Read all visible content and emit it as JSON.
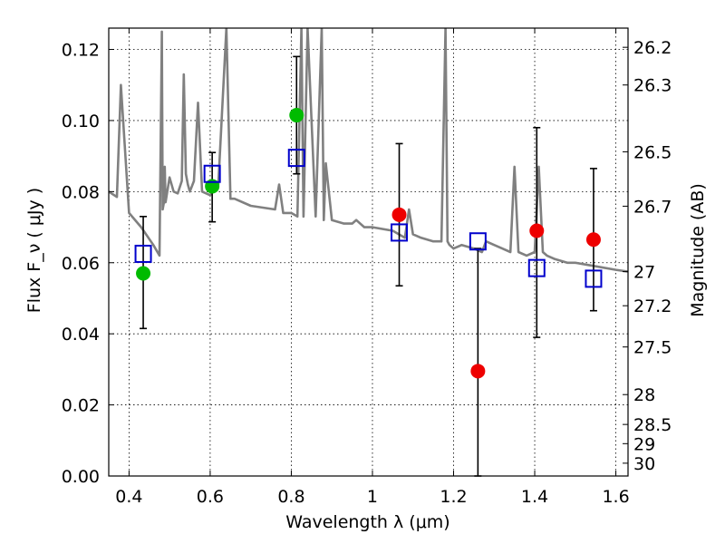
{
  "chart_data": {
    "type": "scatter",
    "title": "",
    "xlabel": "Wavelength  λ (μm)",
    "ylabel": "Flux  F_ν  ( μJy )",
    "ylabel_right": "Magnitude (AB)",
    "xlim": [
      0.35,
      1.63
    ],
    "ylim": [
      0.0,
      0.126
    ],
    "grid": true,
    "x_ticks": [
      0.4,
      0.6,
      0.8,
      1.0,
      1.2,
      1.4,
      1.6
    ],
    "x_tick_labels": [
      "0.4",
      "0.6",
      "0.8",
      "1",
      "1.2",
      "1.4",
      "1.6"
    ],
    "y_ticks": [
      0.0,
      0.02,
      0.04,
      0.06,
      0.08,
      0.1,
      0.12
    ],
    "y_tick_labels": [
      "0.00",
      "0.02",
      "0.04",
      "0.06",
      "0.08",
      "0.10",
      "0.12"
    ],
    "right_ticks": [
      {
        "label": "26.2",
        "flux": 0.1206
      },
      {
        "label": "26.3",
        "flux": 0.11
      },
      {
        "label": "26.5",
        "flux": 0.0912
      },
      {
        "label": "26.7",
        "flux": 0.0759
      },
      {
        "label": "27",
        "flux": 0.0575
      },
      {
        "label": "27.2",
        "flux": 0.0479
      },
      {
        "label": "27.5",
        "flux": 0.0363
      },
      {
        "label": "28",
        "flux": 0.0229
      },
      {
        "label": "28.5",
        "flux": 0.0145
      },
      {
        "label": "29",
        "flux": 0.0091
      },
      {
        "label": "30",
        "flux": 0.0036
      }
    ],
    "series": [
      {
        "name": "model SED",
        "kind": "line",
        "color": "#808080",
        "x": [
          0.35,
          0.37,
          0.38,
          0.4,
          0.43,
          0.46,
          0.475,
          0.481,
          0.483,
          0.486,
          0.488,
          0.49,
          0.5,
          0.51,
          0.52,
          0.53,
          0.535,
          0.54,
          0.545,
          0.55,
          0.56,
          0.57,
          0.58,
          0.6,
          0.62,
          0.64,
          0.65,
          0.66,
          0.7,
          0.76,
          0.77,
          0.78,
          0.8,
          0.815,
          0.825,
          0.83,
          0.84,
          0.86,
          0.875,
          0.88,
          0.885,
          0.9,
          0.93,
          0.95,
          0.96,
          0.98,
          1.0,
          1.05,
          1.08,
          1.09,
          1.1,
          1.12,
          1.15,
          1.17,
          1.18,
          1.185,
          1.19,
          1.2,
          1.22,
          1.25,
          1.27,
          1.28,
          1.3,
          1.32,
          1.34,
          1.35,
          1.36,
          1.38,
          1.4,
          1.41,
          1.42,
          1.43,
          1.45,
          1.48,
          1.5,
          1.55,
          1.6,
          1.63
        ],
        "y": [
          0.08,
          0.0785,
          0.11,
          0.074,
          0.07,
          0.065,
          0.062,
          0.125,
          0.075,
          0.077,
          0.087,
          0.077,
          0.084,
          0.08,
          0.0795,
          0.083,
          0.113,
          0.085,
          0.082,
          0.08,
          0.083,
          0.105,
          0.08,
          0.079,
          0.082,
          0.126,
          0.078,
          0.078,
          0.076,
          0.075,
          0.082,
          0.074,
          0.074,
          0.073,
          0.126,
          0.073,
          0.126,
          0.073,
          0.126,
          0.072,
          0.088,
          0.072,
          0.071,
          0.071,
          0.072,
          0.07,
          0.07,
          0.069,
          0.067,
          0.075,
          0.068,
          0.067,
          0.066,
          0.066,
          0.126,
          0.066,
          0.065,
          0.064,
          0.065,
          0.064,
          0.063,
          0.066,
          0.065,
          0.064,
          0.063,
          0.087,
          0.063,
          0.062,
          0.063,
          0.087,
          0.063,
          0.062,
          0.061,
          0.06,
          0.06,
          0.059,
          0.058,
          0.0575
        ]
      },
      {
        "name": "observed (green)",
        "kind": "marker-circle",
        "color": "#00bb00",
        "x": [
          0.435,
          0.605,
          0.813
        ],
        "y": [
          0.057,
          0.0815,
          0.1015
        ]
      },
      {
        "name": "observed (red)",
        "kind": "marker-circle",
        "color": "#ee0000",
        "x": [
          1.066,
          1.26,
          1.405,
          1.545
        ],
        "y": [
          0.0735,
          0.0295,
          0.069,
          0.0665
        ]
      },
      {
        "name": "model photometry",
        "kind": "marker-square",
        "color": "#0000cc",
        "x": [
          0.435,
          0.605,
          0.813,
          1.066,
          1.26,
          1.405,
          1.545
        ],
        "y": [
          0.0625,
          0.085,
          0.0895,
          0.0685,
          0.066,
          0.0585,
          0.0555
        ]
      },
      {
        "name": "error bars",
        "kind": "errorbar",
        "color": "#000000",
        "x": [
          0.435,
          0.605,
          0.813,
          1.066,
          1.26,
          1.405,
          1.545
        ],
        "low": [
          0.0415,
          0.0715,
          0.085,
          0.0535,
          0.0,
          0.039,
          0.0465
        ],
        "high": [
          0.073,
          0.091,
          0.118,
          0.0935,
          0.064,
          0.098,
          0.0865
        ]
      }
    ]
  }
}
